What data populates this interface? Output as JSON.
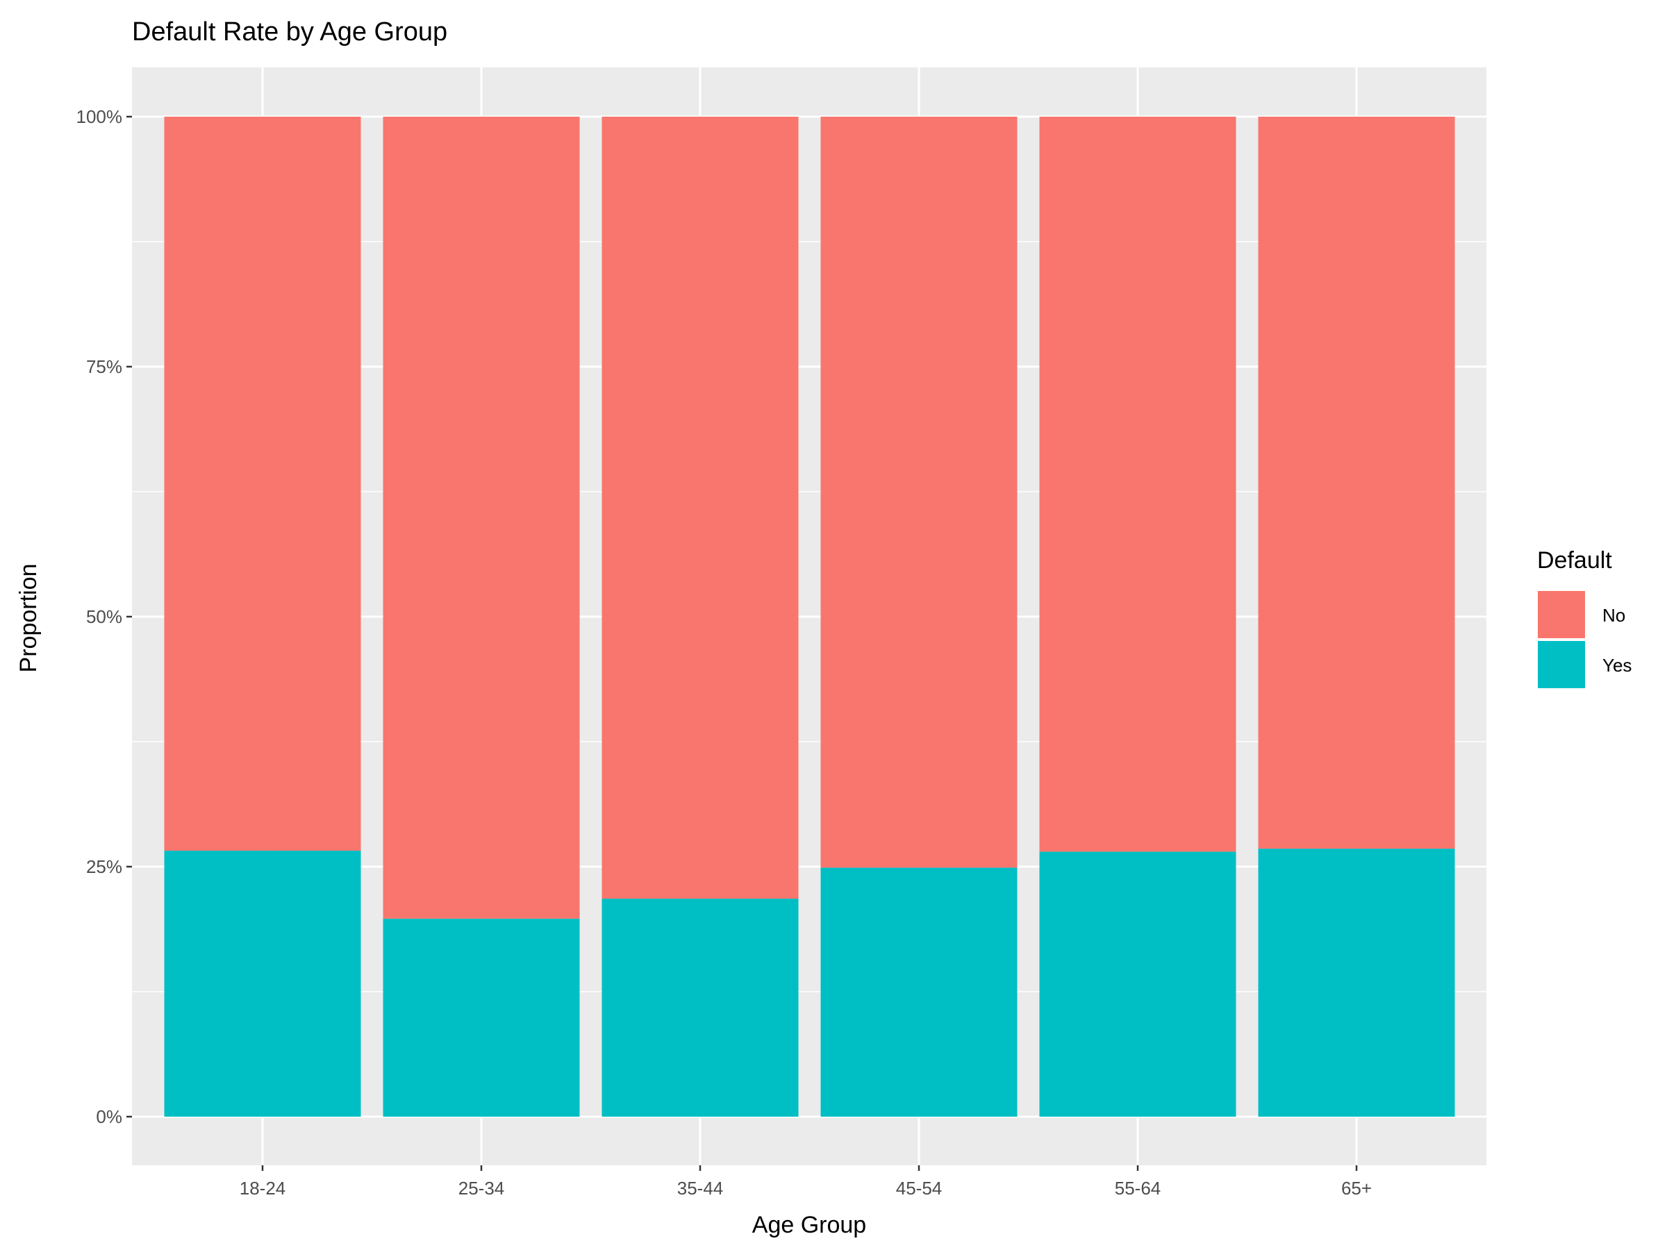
{
  "chart_data": {
    "type": "bar",
    "stacked": true,
    "title": "Default Rate by Age Group",
    "xlabel": "Age Group",
    "ylabel": "Proportion",
    "categories": [
      "18-24",
      "25-34",
      "35-44",
      "45-54",
      "55-64",
      "65+"
    ],
    "series": [
      {
        "name": "Yes",
        "values": [
          0.266,
          0.198,
          0.218,
          0.249,
          0.265,
          0.268
        ]
      },
      {
        "name": "No",
        "values": [
          0.734,
          0.802,
          0.782,
          0.751,
          0.735,
          0.732
        ]
      }
    ],
    "ylim": [
      0,
      1
    ],
    "y_ticks": [
      0,
      0.25,
      0.5,
      0.75,
      1
    ],
    "y_tick_labels": [
      "0%",
      "25%",
      "50%",
      "75%",
      "100%"
    ],
    "grid": true,
    "legend": {
      "title": "Default",
      "position": "right",
      "entries": [
        "No",
        "Yes"
      ]
    },
    "colors": {
      "No": "#F8766D",
      "Yes": "#00BFC4",
      "panel": "#EBEBEB",
      "grid": "#FFFFFF"
    }
  }
}
